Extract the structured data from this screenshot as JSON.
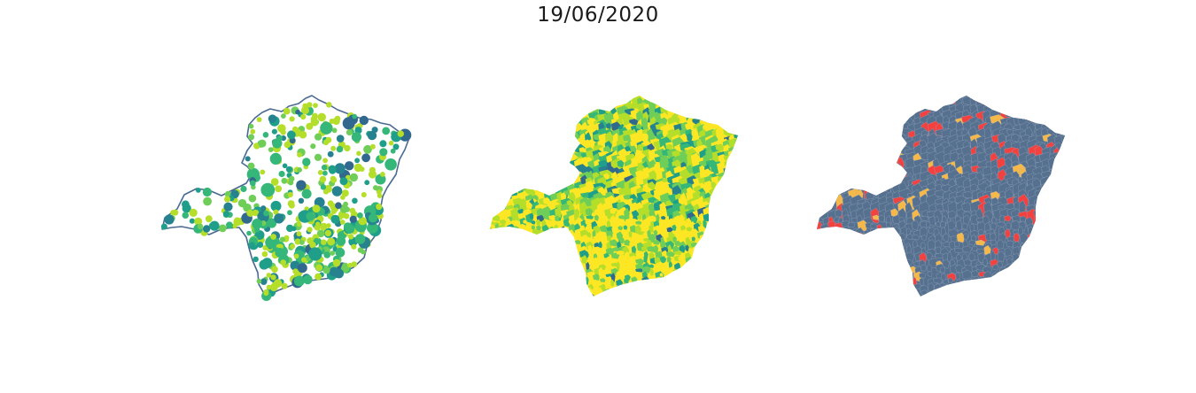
{
  "figure": {
    "title": "19/06/2020"
  },
  "maps": [
    {
      "kind": "proportional-symbol",
      "outline_color": "#4a6a91",
      "marker_palette": [
        "#b5de2b",
        "#6ece58",
        "#35b779",
        "#1f9e89",
        "#26828e",
        "#31688e"
      ]
    },
    {
      "kind": "choropleth",
      "palette": [
        "#fde725",
        "#b5de2b",
        "#6ece58",
        "#35b779",
        "#1f9e89",
        "#26828e",
        "#31688e"
      ]
    },
    {
      "kind": "categorical",
      "base_color": "#56708f",
      "category_colors": [
        "#56708f",
        "#f2413f",
        "#f7b84a"
      ],
      "border_color": "#9fb0c4"
    }
  ]
}
